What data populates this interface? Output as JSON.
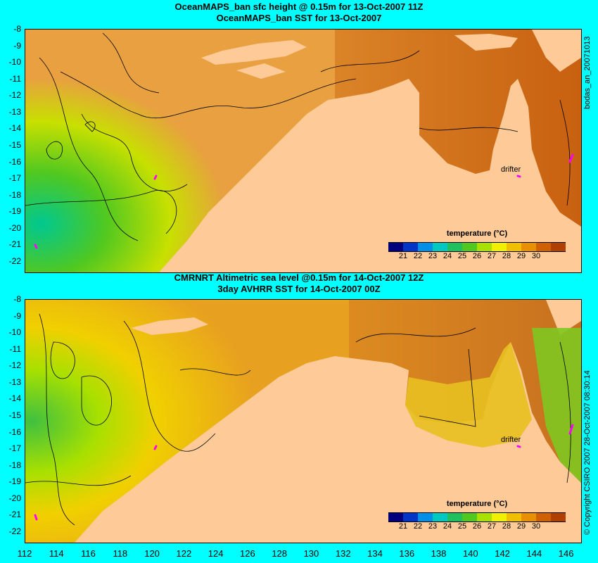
{
  "top": {
    "title_line1": "OceanMAPS_ban sfc height @ 0.15m for 13-Oct-2007 11Z",
    "title_line2": "OceanMAPS_ban SST for 13-Oct-2007",
    "side_label": "bodas_an_20071013",
    "drifter_label": "drifter"
  },
  "bottom": {
    "title_line1": "CMRNRT Altimetric sea level  @0.15m  for 14-Oct-2007 12Z",
    "title_line2": "3day AVHRR SST for 14-Oct-2007 00Z",
    "side_label": "© Copyright CSIRO 2007  28-Oct-2007 08:30:14",
    "drifter_label": "drifter"
  },
  "colorbar": {
    "title": "temperature (°C)",
    "labels": [
      "21",
      "22",
      "23",
      "24",
      "25",
      "26",
      "27",
      "28",
      "29",
      "30"
    ],
    "colors": [
      "#00007f",
      "#0035c8",
      "#0090e8",
      "#00c8c0",
      "#20c060",
      "#50c820",
      "#a8e000",
      "#f0f000",
      "#f0c000",
      "#e89000",
      "#d06000",
      "#b04000"
    ]
  },
  "y_axis": {
    "ticks": [
      "-8",
      "-9",
      "-10",
      "-11",
      "-12",
      "-13",
      "-14",
      "-15",
      "-16",
      "-17",
      "-18",
      "-19",
      "-20",
      "-21",
      "-22"
    ],
    "range": [
      -8,
      -22
    ]
  },
  "x_axis": {
    "ticks": [
      "112",
      "114",
      "116",
      "118",
      "120",
      "122",
      "124",
      "126",
      "128",
      "130",
      "132",
      "134",
      "136",
      "138",
      "140",
      "142",
      "144",
      "146"
    ],
    "range": [
      112,
      146.9
    ]
  },
  "colors": {
    "background": "#00ffff",
    "land": "#fdca98"
  }
}
